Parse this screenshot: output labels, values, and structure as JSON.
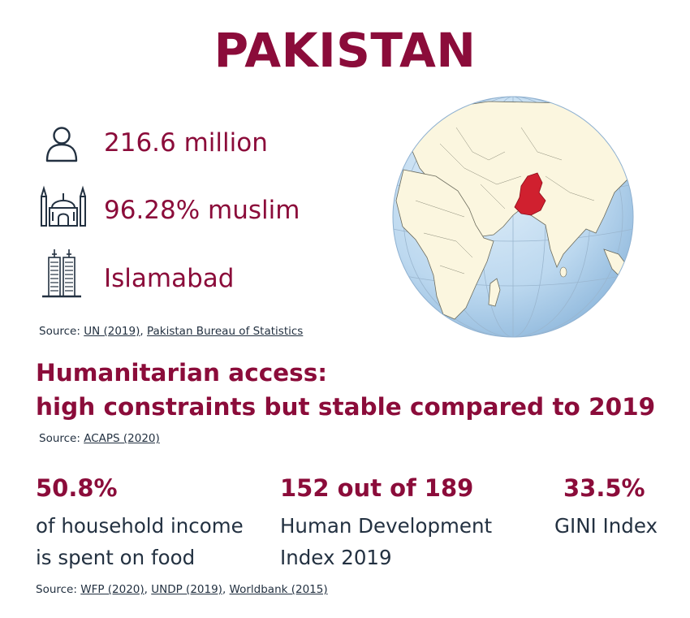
{
  "title": "PAKISTAN",
  "facts": [
    {
      "icon": "person-icon",
      "text": "216.6 million"
    },
    {
      "icon": "mosque-icon",
      "text": "96.28% muslim"
    },
    {
      "icon": "skyscraper-icon",
      "text": "Islamabad"
    }
  ],
  "facts_source": {
    "prefix": "Source: ",
    "links": [
      "UN (2019)",
      "Pakistan Bureau of Statistics"
    ],
    "separator": ", "
  },
  "access": {
    "line1": "Humanitarian access:",
    "line2": "high constraints but stable compared to 2019"
  },
  "access_source": {
    "prefix": "Source: ",
    "link": "ACAPS (2020)"
  },
  "stats": [
    {
      "value": "50.8%",
      "desc_line1": "of household income",
      "desc_line2": "is spent on food"
    },
    {
      "value": "152 out of 189",
      "desc_line1": "Human Development",
      "desc_line2": "Index 2019"
    },
    {
      "value": "33.5%",
      "desc_line1": "GINI Index",
      "desc_line2": ""
    }
  ],
  "stats_source": {
    "prefix": "Source: ",
    "links": [
      "WFP (2020)",
      "UNDP (2019)",
      "Worldbank (2015)"
    ],
    "separator": ", "
  },
  "colors": {
    "accent": "#8b0c3a",
    "text": "#233141",
    "ocean": "#bcd8ef",
    "land": "#fbf6df",
    "highlight": "#d0202f"
  }
}
